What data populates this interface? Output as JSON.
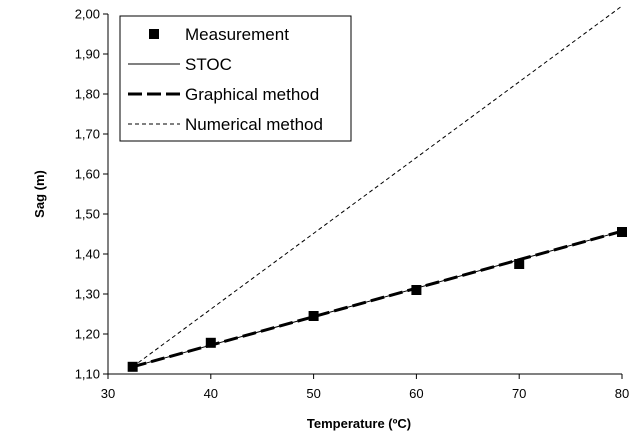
{
  "chart_data": {
    "type": "line",
    "title": "",
    "xlabel": "Temperature (ºC)",
    "ylabel": "Sag (m)",
    "xlim": [
      30,
      80
    ],
    "ylim": [
      1.1,
      2.0
    ],
    "x_ticks": [
      30,
      40,
      50,
      60,
      70,
      80
    ],
    "y_ticks": [
      1.1,
      1.2,
      1.3,
      1.4,
      1.5,
      1.6,
      1.7,
      1.8,
      1.9,
      2.0
    ],
    "x_tick_labels": [
      "30",
      "40",
      "50",
      "60",
      "70",
      "80"
    ],
    "y_tick_labels": [
      "1,10",
      "1,20",
      "1,30",
      "1,40",
      "1,50",
      "1,60",
      "1,70",
      "1,80",
      "1,90",
      "2,00"
    ],
    "grid": false,
    "legend_position": "top-left",
    "series": [
      {
        "name": "Measurement",
        "style": "marker-square",
        "x": [
          32.4,
          40,
          50,
          60,
          70,
          80
        ],
        "y": [
          1.118,
          1.178,
          1.245,
          1.31,
          1.375,
          1.455
        ]
      },
      {
        "name": "STOC",
        "style": "solid-thin",
        "x": [
          32.4,
          80
        ],
        "y": [
          1.118,
          1.457
        ]
      },
      {
        "name": "Graphical method",
        "style": "dashed-thick",
        "x": [
          32.4,
          80
        ],
        "y": [
          1.118,
          1.457
        ]
      },
      {
        "name": "Numerical method",
        "style": "dashed-thin",
        "x": [
          32.4,
          80
        ],
        "y": [
          1.118,
          2.02
        ]
      }
    ],
    "colors": {
      "series": "#000000",
      "background": "#ffffff"
    }
  }
}
